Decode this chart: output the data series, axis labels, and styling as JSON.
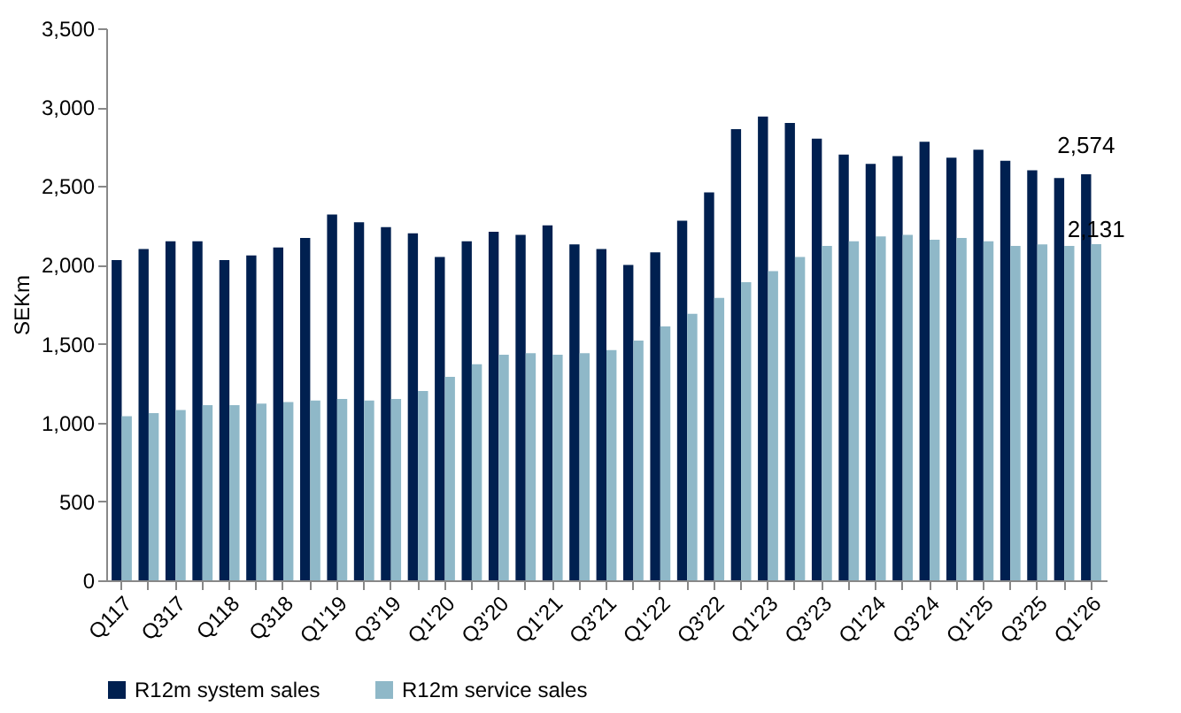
{
  "chart_data": {
    "type": "bar",
    "ylabel": "SEKm",
    "categories": [
      "Q117",
      null,
      "Q317",
      null,
      "Q118",
      null,
      "Q318",
      null,
      "Q1'19",
      null,
      "Q3'19",
      null,
      "Q1'20",
      null,
      "Q3'20",
      null,
      "Q1'21",
      null,
      "Q3'21",
      null,
      "Q1'22",
      null,
      "Q3'22",
      null,
      "Q1'23",
      null,
      "Q3'23",
      null,
      "Q1'24",
      null,
      "Q3'24",
      null,
      "Q1'25",
      null,
      "Q3'25",
      null,
      "Q1'26"
    ],
    "series": [
      {
        "name": "R12m system sales",
        "color": "#002050",
        "values": [
          2030,
          2100,
          2150,
          2150,
          2030,
          2060,
          2110,
          2170,
          2320,
          2270,
          2240,
          2200,
          2050,
          2150,
          2210,
          2190,
          2250,
          2130,
          2100,
          2000,
          2080,
          2280,
          2460,
          2860,
          2940,
          2900,
          2800,
          2700,
          2640,
          2690,
          2780,
          2680,
          2730,
          2660,
          2600,
          2550,
          2574
        ],
        "value_labels": [
          null,
          null,
          null,
          null,
          null,
          null,
          null,
          null,
          null,
          null,
          null,
          null,
          null,
          null,
          null,
          null,
          null,
          null,
          null,
          null,
          null,
          null,
          null,
          null,
          null,
          null,
          null,
          null,
          null,
          null,
          null,
          null,
          null,
          null,
          null,
          null,
          "2,574"
        ]
      },
      {
        "name": "R12m service sales",
        "color": "#8fb8c8",
        "values": [
          1040,
          1060,
          1080,
          1110,
          1110,
          1120,
          1130,
          1140,
          1150,
          1140,
          1150,
          1200,
          1290,
          1370,
          1430,
          1440,
          1430,
          1440,
          1460,
          1520,
          1610,
          1690,
          1790,
          1890,
          1960,
          2050,
          2120,
          2150,
          2180,
          2190,
          2160,
          2170,
          2150,
          2120,
          2130,
          2120,
          2131
        ],
        "value_labels": [
          null,
          null,
          null,
          null,
          null,
          null,
          null,
          null,
          null,
          null,
          null,
          null,
          null,
          null,
          null,
          null,
          null,
          null,
          null,
          null,
          null,
          null,
          null,
          null,
          null,
          null,
          null,
          null,
          null,
          null,
          null,
          null,
          null,
          null,
          null,
          null,
          "2,131"
        ]
      }
    ],
    "ylim": [
      0,
      3500
    ],
    "yticks": [
      0,
      500,
      {
        "value": 1000,
        "label": "1,000"
      },
      {
        "value": 1500,
        "label": "1,500"
      },
      {
        "value": 2000,
        "label": "2,000"
      },
      {
        "value": 2500,
        "label": "2,500"
      },
      {
        "value": 3000,
        "label": "3,000"
      },
      {
        "value": 3500,
        "label": "3,500"
      }
    ],
    "grid": false,
    "legend": "bottom"
  }
}
